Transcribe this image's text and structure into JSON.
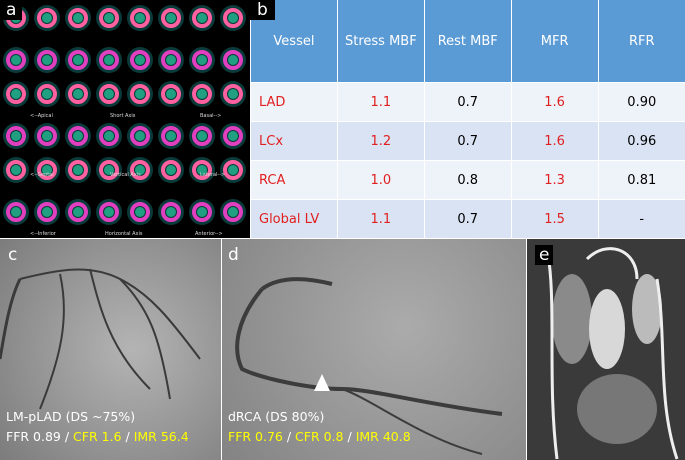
{
  "panels": {
    "a": {
      "label": "a",
      "captions": [
        "<--Apical",
        "Short Axis",
        "Basal-->",
        "<--Septal",
        "Vertical Axis",
        "Lateral-->",
        "<--Inferior",
        "Horizontal Axis",
        "Anterior-->"
      ]
    },
    "b": {
      "label": "b",
      "table": {
        "header": [
          "Vessel",
          "Stress MBF",
          "Rest MBF",
          "MFR",
          "RFR"
        ],
        "rows": [
          {
            "cells": [
              "LAD",
              "1.1",
              "0.7",
              "1.6",
              "0.90"
            ],
            "red": [
              true,
              true,
              false,
              true,
              false
            ]
          },
          {
            "cells": [
              "LCx",
              "1.2",
              "0.7",
              "1.6",
              "0.96"
            ],
            "red": [
              true,
              true,
              false,
              true,
              false
            ]
          },
          {
            "cells": [
              "RCA",
              "1.0",
              "0.8",
              "1.3",
              "0.81"
            ],
            "red": [
              true,
              true,
              false,
              true,
              false
            ]
          },
          {
            "cells": [
              "Global LV",
              "1.1",
              "0.7",
              "1.5",
              "-"
            ],
            "red": [
              true,
              true,
              false,
              true,
              false
            ]
          }
        ]
      }
    },
    "c": {
      "label": "c",
      "lesion": "LM-pLAD (DS ~75%)",
      "ffr": "FFR 0.89",
      "sep1": " / ",
      "cfr": "CFR 1.6",
      "sep2": " / ",
      "imr": "IMR 56.4"
    },
    "d": {
      "label": "d",
      "lesion": "dRCA (DS 80%)",
      "ffr": "FFR 0.76",
      "sep1": " / ",
      "cfr": "CFR 0.8",
      "sep2": " / ",
      "imr": "IMR 40.8"
    },
    "e": {
      "label": "e"
    }
  }
}
